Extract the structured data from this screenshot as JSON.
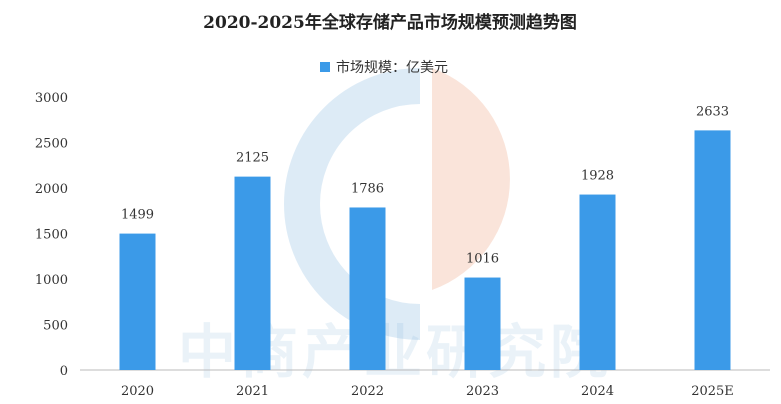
{
  "chart_data": {
    "type": "bar",
    "title": "2020-2025年全球存储产品市场规模预测趋势图",
    "categories": [
      "2020",
      "2021",
      "2022",
      "2023",
      "2024",
      "2025E"
    ],
    "series": [
      {
        "name": "市场规模：亿美元",
        "values": [
          1499,
          2125,
          1786,
          1016,
          1928,
          2633
        ]
      }
    ],
    "data_labels": [
      "1499",
      "2125",
      "1786",
      "1016",
      "1928",
      "2633"
    ],
    "y_ticks": [
      "0",
      "500",
      "1000",
      "1500",
      "2000",
      "2500",
      "3000"
    ],
    "ylim": [
      0,
      3000
    ],
    "grid": false,
    "legend_position": "top-center",
    "colors": {
      "bar": "#3b9ae8"
    }
  },
  "watermark": {
    "text": "中商产业研究院"
  }
}
